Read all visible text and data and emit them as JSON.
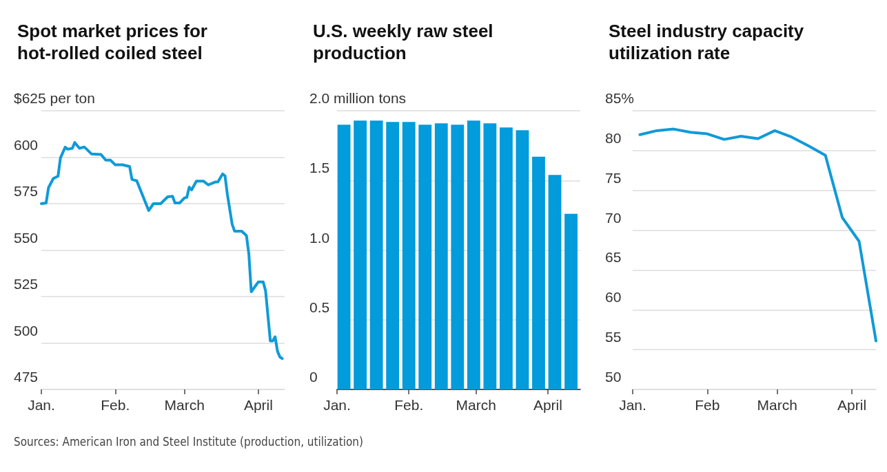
{
  "chart_data": [
    {
      "type": "line",
      "title": "Spot market prices for hot-rolled coiled steel",
      "color": "#0f9ad8",
      "line_style": "solid",
      "marker": "none",
      "grid": "y",
      "x": [
        "--01-01",
        "--01-03",
        "--01-04",
        "--01-06",
        "--01-08",
        "--01-09",
        "--01-11",
        "--01-12",
        "--01-14",
        "--01-15",
        "--01-17",
        "--01-19",
        "--01-20",
        "--01-22",
        "--01-26",
        "--01-28",
        "--01-30",
        "--02-01",
        "--02-04",
        "--02-07",
        "--02-08",
        "--02-10",
        "--02-15",
        "--02-17",
        "--02-20",
        "--02-23",
        "--02-25",
        "--02-26",
        "--02-28",
        "--03-01",
        "--03-02",
        "--03-03",
        "--03-04",
        "--03-06",
        "--03-09",
        "--03-11",
        "--03-14",
        "--03-15",
        "--03-17",
        "--03-18",
        "--03-19",
        "--03-21",
        "--03-22",
        "--03-25",
        "--03-27",
        "--03-28",
        "--03-29",
        "--04-01",
        "--04-03",
        "--04-04",
        "--04-06",
        "--04-07",
        "--04-08",
        "--04-09",
        "--04-10",
        "--04-11"
      ],
      "values": [
        575,
        575.4,
        583.6,
        588.5,
        589.8,
        599.6,
        605.4,
        604.3,
        604.8,
        607.9,
        604.8,
        605.5,
        604.3,
        601.8,
        601.5,
        598.4,
        598.4,
        595.9,
        595.9,
        595,
        588,
        587.3,
        571.3,
        575,
        575,
        578.7,
        579,
        575.4,
        575.4,
        578.1,
        578.4,
        583.9,
        582.4,
        587.1,
        587.1,
        585.1,
        586.7,
        586.7,
        591,
        590,
        579.9,
        563.9,
        560.2,
        560.2,
        557.8,
        547.9,
        527.6,
        532.9,
        532.9,
        528.2,
        501.1,
        501.1,
        503.3,
        495.6,
        492.5,
        491.6
      ],
      "xlim": [
        "--01-01",
        "--04-12"
      ],
      "xticks": [
        {
          "value": "--01-01",
          "label": "Jan."
        },
        {
          "value": "--02-01",
          "label": "Feb."
        },
        {
          "value": "--03-01",
          "label": "March"
        },
        {
          "value": "--04-01",
          "label": "April"
        }
      ],
      "ylim": [
        475,
        625
      ],
      "yticks": [
        475,
        500,
        525,
        550,
        575,
        600,
        {
          "value": 625,
          "label": "$625 per ton"
        }
      ],
      "annotations": [
        "Sources: American Iron and Steel Institute (production, utilization)"
      ]
    },
    {
      "type": "bar",
      "title": "U.S. weekly raw steel production",
      "color": "#029bdb",
      "grid": "y",
      "x": [
        "--01-04",
        "--01-11",
        "--01-18",
        "--01-25",
        "--02-01",
        "--02-08",
        "--02-15",
        "--02-22",
        "--02-29",
        "--03-07",
        "--03-14",
        "--03-21",
        "--03-28",
        "--04-04",
        "--04-11"
      ],
      "values": [
        1.9,
        1.93,
        1.93,
        1.92,
        1.92,
        1.9,
        1.91,
        1.9,
        1.93,
        1.91,
        1.88,
        1.86,
        1.67,
        1.54,
        1.26
      ],
      "xlim": [
        "--01-01",
        "--04-15"
      ],
      "xticks": [
        {
          "value": "--01-01",
          "label": "Jan."
        },
        {
          "value": "--02-01",
          "label": "Feb."
        },
        {
          "value": "--03-01",
          "label": "March"
        },
        {
          "value": "--04-01",
          "label": "April"
        }
      ],
      "ylim": [
        0,
        2
      ],
      "yticks": [
        0,
        0.5,
        {
          "value": 1,
          "label": "1.0"
        },
        1.5,
        {
          "value": 2,
          "label": "2.0 million tons"
        }
      ]
    },
    {
      "type": "line",
      "title": "Steel industry capacity utilization rate",
      "color": "#0f9ad8",
      "line_style": "solid",
      "marker": "none",
      "grid": "y",
      "x": [
        "--01-04",
        "--01-11",
        "--01-18",
        "--01-25",
        "--02-01",
        "--02-08",
        "--02-15",
        "--02-22",
        "--02-29",
        "--03-07",
        "--03-14",
        "--03-21",
        "--03-28",
        "--04-04",
        "--04-11"
      ],
      "values": [
        82.0,
        82.5,
        82.7,
        82.3,
        82.1,
        81.4,
        81.8,
        81.5,
        82.5,
        81.7,
        80.6,
        79.4,
        71.6,
        68.6,
        56.1
      ],
      "xlim": [
        "--01-01",
        "--04-11"
      ],
      "xticks": [
        {
          "value": "--01-01",
          "label": "Jan."
        },
        {
          "value": "--02-01",
          "label": "Feb"
        },
        {
          "value": "--03-01",
          "label": "March"
        },
        {
          "value": "--04-01",
          "label": "April"
        }
      ],
      "ylim": [
        50,
        85
      ],
      "yticks": [
        50,
        55,
        60,
        65,
        70,
        75,
        80,
        {
          "value": 85,
          "label": "85%"
        }
      ]
    }
  ]
}
